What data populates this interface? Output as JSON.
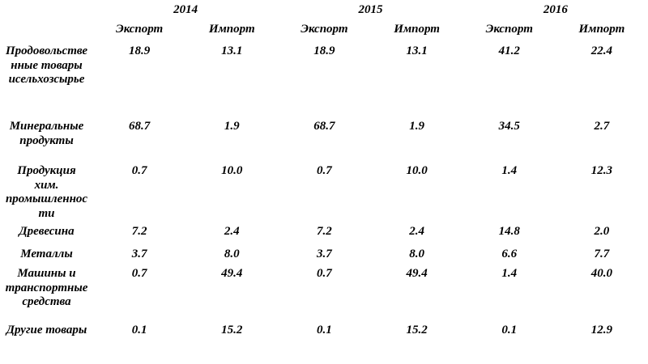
{
  "table": {
    "years": [
      "2014",
      "2015",
      "2016"
    ],
    "col_headers": [
      "Экспорт",
      "Импорт",
      "Экспорт",
      "Импорт",
      "Экспорт",
      "Импорт"
    ],
    "rows": [
      {
        "label": "Продовольстве\nнные товары\nисельхозсырье",
        "values": [
          "18.9",
          "13.1",
          "18.9",
          "13.1",
          "41.2",
          "22.4"
        ]
      },
      {
        "label": "Минеральные\nпродукты",
        "values": [
          "68.7",
          "1.9",
          "68.7",
          "1.9",
          "34.5",
          "2.7"
        ]
      },
      {
        "label": "Продукция\nхим.\nпромышленнос\nти",
        "values": [
          "0.7",
          "10.0",
          "0.7",
          "10.0",
          "1.4",
          "12.3"
        ]
      },
      {
        "label": "Древесина",
        "values": [
          "7.2",
          "2.4",
          "7.2",
          "2.4",
          "14.8",
          "2.0"
        ]
      },
      {
        "label": "Металлы",
        "values": [
          "3.7",
          "8.0",
          "3.7",
          "8.0",
          "6.6",
          "7.7"
        ]
      },
      {
        "label": "Машины и\nтранспортные\nсредства",
        "values": [
          "0.7",
          "49.4",
          "0.7",
          "49.4",
          "1.4",
          "40.0"
        ]
      },
      {
        "label": "Другие товары",
        "values": [
          "0.1",
          "15.2",
          "0.1",
          "15.2",
          "0.1",
          "12.9"
        ]
      }
    ]
  }
}
